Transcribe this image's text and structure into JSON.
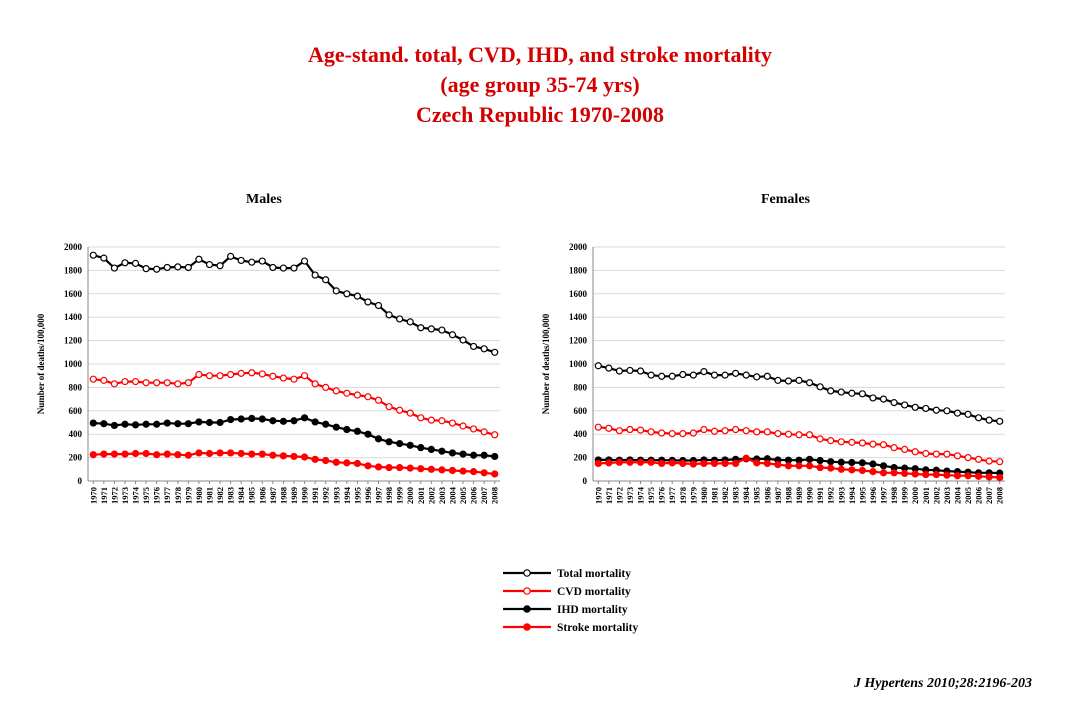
{
  "header": {
    "title_lines": [
      "Age-stand. total, CVD, IHD, and stroke mortality",
      "(age group 35-74 yrs)",
      "Czech Republic 1970-2008"
    ]
  },
  "citation": "J Hypertens 2010;28:2196-203",
  "legend": [
    {
      "label": "Total mortality",
      "color": "#000000",
      "marker": "open"
    },
    {
      "label": "CVD mortality",
      "color": "#ff0000",
      "marker": "open"
    },
    {
      "label": "IHD mortality",
      "color": "#000000",
      "marker": "filled"
    },
    {
      "label": "Stroke mortality",
      "color": "#ff0000",
      "marker": "filled"
    }
  ],
  "chart_data": [
    {
      "type": "line",
      "title": "Males",
      "ylabel": "Number of deaths/100,000",
      "xlabel": "",
      "ylim": [
        0,
        2000
      ],
      "yticks": [
        0,
        200,
        400,
        600,
        800,
        1000,
        1200,
        1400,
        1600,
        1800,
        2000
      ],
      "grid": true,
      "x": [
        "1970",
        "1971",
        "1972",
        "1973",
        "1974",
        "1975",
        "1976",
        "1977",
        "1978",
        "1979",
        "1980",
        "1981",
        "1982",
        "1983",
        "1984",
        "1985",
        "1986",
        "1987",
        "1988",
        "1989",
        "1990",
        "1991",
        "1992",
        "1993",
        "1994",
        "1995",
        "1996",
        "1997",
        "1998",
        "1999",
        "2000",
        "2001",
        "2002",
        "2003",
        "2004",
        "2005",
        "2006",
        "2007",
        "2008"
      ],
      "series": [
        {
          "name": "Total mortality",
          "color": "#000000",
          "marker": "open",
          "values": [
            1930,
            1905,
            1820,
            1865,
            1860,
            1815,
            1810,
            1825,
            1830,
            1825,
            1895,
            1850,
            1840,
            1920,
            1885,
            1870,
            1880,
            1825,
            1820,
            1820,
            1880,
            1760,
            1720,
            1625,
            1600,
            1580,
            1530,
            1500,
            1420,
            1385,
            1360,
            1310,
            1300,
            1290,
            1250,
            1205,
            1150,
            1130,
            1100
          ]
        },
        {
          "name": "CVD mortality",
          "color": "#ff0000",
          "marker": "open",
          "values": [
            870,
            860,
            830,
            850,
            850,
            840,
            840,
            840,
            830,
            840,
            910,
            900,
            900,
            910,
            920,
            925,
            915,
            895,
            880,
            870,
            900,
            830,
            800,
            770,
            750,
            735,
            720,
            690,
            635,
            605,
            580,
            540,
            520,
            515,
            495,
            470,
            445,
            420,
            395
          ]
        },
        {
          "name": "IHD mortality",
          "color": "#000000",
          "marker": "filled",
          "values": [
            495,
            490,
            475,
            485,
            480,
            485,
            485,
            495,
            490,
            490,
            505,
            500,
            500,
            525,
            530,
            535,
            530,
            515,
            510,
            515,
            540,
            505,
            485,
            460,
            440,
            425,
            400,
            360,
            335,
            320,
            305,
            285,
            270,
            255,
            240,
            230,
            220,
            220,
            210
          ]
        },
        {
          "name": "Stroke mortality",
          "color": "#ff0000",
          "marker": "filled",
          "values": [
            225,
            230,
            230,
            230,
            235,
            235,
            225,
            230,
            225,
            220,
            240,
            235,
            240,
            240,
            235,
            230,
            230,
            220,
            215,
            210,
            205,
            185,
            175,
            160,
            155,
            150,
            130,
            120,
            115,
            115,
            110,
            105,
            100,
            95,
            90,
            85,
            80,
            70,
            60
          ]
        }
      ]
    },
    {
      "type": "line",
      "title": "Females",
      "ylabel": "Number of deaths/100,000",
      "xlabel": "",
      "ylim": [
        0,
        2000
      ],
      "yticks": [
        0,
        200,
        400,
        600,
        800,
        1000,
        1200,
        1400,
        1600,
        1800,
        2000
      ],
      "grid": true,
      "x": [
        "1970",
        "1971",
        "1972",
        "1973",
        "1974",
        "1975",
        "1976",
        "1977",
        "1978",
        "1979",
        "1980",
        "1981",
        "1982",
        "1983",
        "1984",
        "1985",
        "1986",
        "1987",
        "1988",
        "1989",
        "1990",
        "1991",
        "1992",
        "1993",
        "1994",
        "1995",
        "1996",
        "1997",
        "1998",
        "1999",
        "2000",
        "2001",
        "2002",
        "2003",
        "2004",
        "2005",
        "2006",
        "2007",
        "2008"
      ],
      "series": [
        {
          "name": "Total mortality",
          "color": "#000000",
          "marker": "open",
          "values": [
            985,
            965,
            940,
            945,
            940,
            905,
            895,
            895,
            910,
            905,
            935,
            905,
            905,
            920,
            905,
            890,
            895,
            860,
            855,
            860,
            840,
            805,
            770,
            760,
            750,
            745,
            710,
            700,
            670,
            650,
            630,
            620,
            605,
            600,
            580,
            570,
            540,
            520,
            510
          ]
        },
        {
          "name": "CVD mortality",
          "color": "#ff0000",
          "marker": "open",
          "values": [
            460,
            450,
            430,
            440,
            435,
            420,
            410,
            405,
            405,
            410,
            440,
            425,
            430,
            440,
            430,
            420,
            420,
            405,
            400,
            395,
            395,
            360,
            345,
            335,
            330,
            325,
            315,
            310,
            285,
            270,
            250,
            235,
            230,
            230,
            215,
            200,
            185,
            170,
            165
          ]
        },
        {
          "name": "IHD mortality",
          "color": "#000000",
          "marker": "filled",
          "values": [
            180,
            180,
            178,
            180,
            178,
            178,
            178,
            176,
            175,
            175,
            180,
            178,
            180,
            185,
            190,
            188,
            190,
            180,
            178,
            178,
            185,
            175,
            165,
            160,
            158,
            155,
            145,
            130,
            115,
            110,
            105,
            95,
            92,
            85,
            80,
            75,
            70,
            70,
            68
          ]
        },
        {
          "name": "Stroke mortality",
          "color": "#ff0000",
          "marker": "filled",
          "values": [
            150,
            155,
            160,
            160,
            160,
            160,
            150,
            155,
            150,
            145,
            150,
            150,
            150,
            150,
            195,
            155,
            150,
            140,
            130,
            130,
            130,
            115,
            110,
            100,
            95,
            90,
            80,
            70,
            70,
            65,
            60,
            55,
            55,
            50,
            45,
            45,
            40,
            35,
            30
          ]
        }
      ]
    }
  ]
}
